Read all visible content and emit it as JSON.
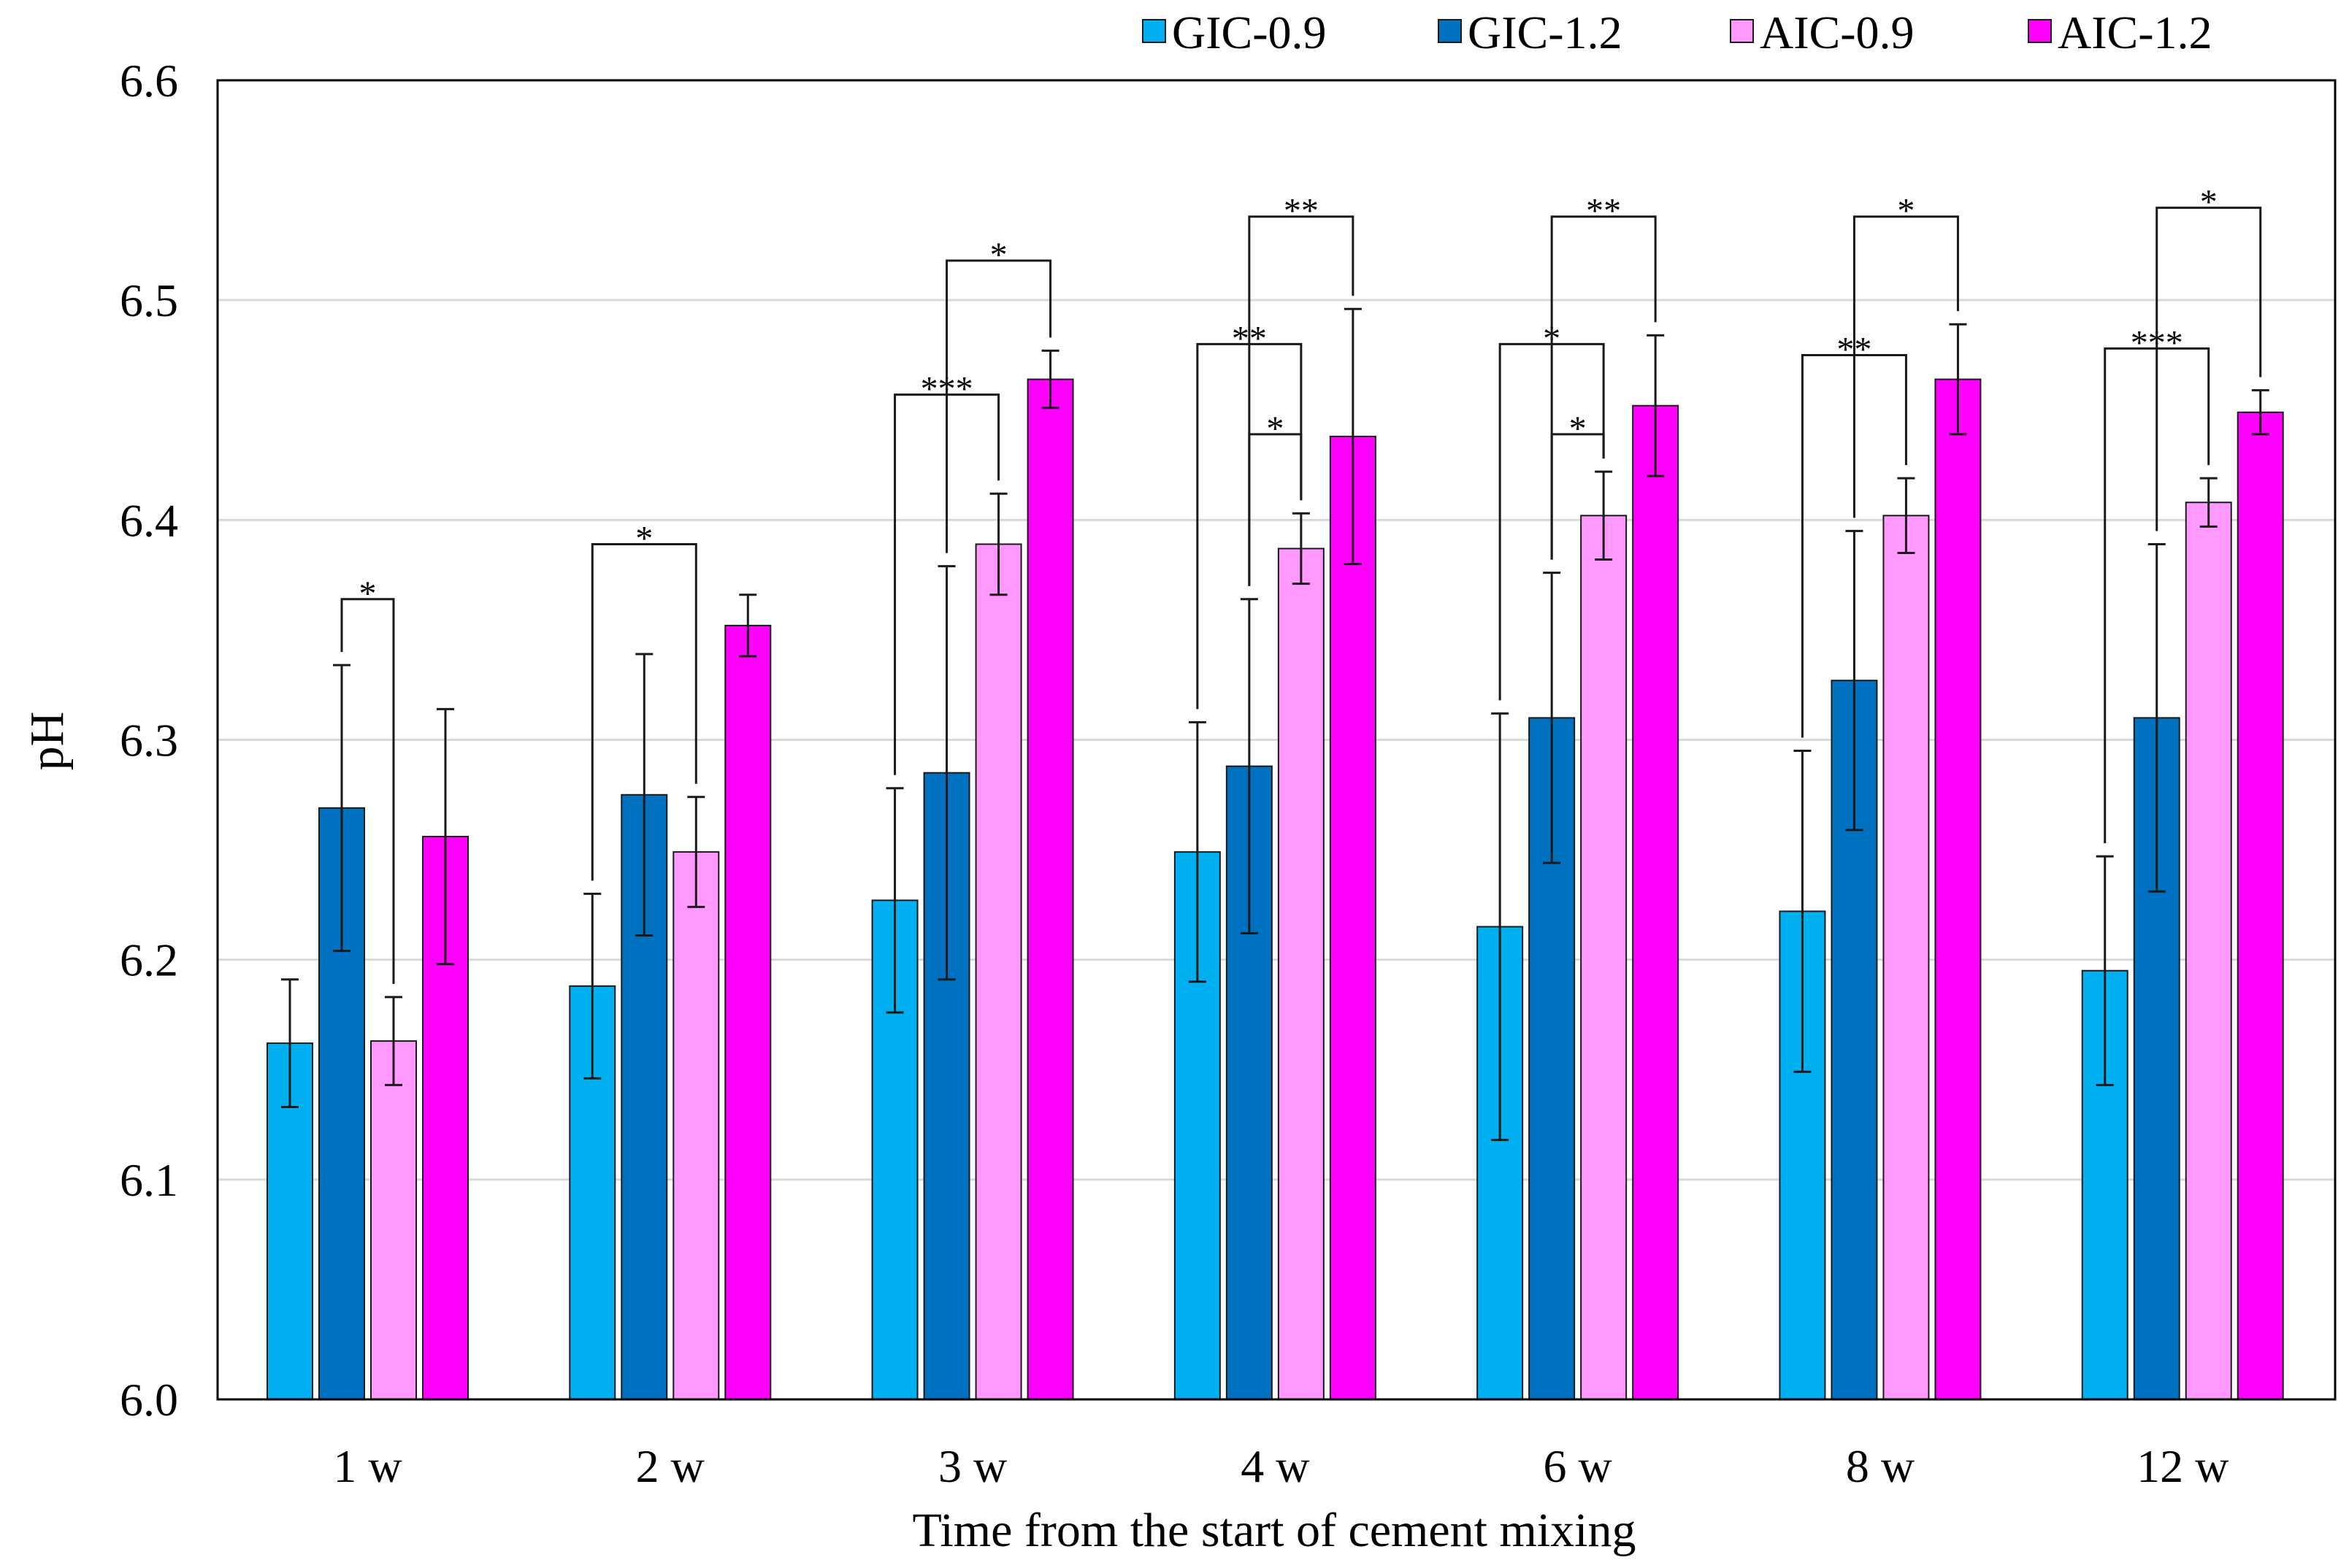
{
  "chart_data": {
    "type": "bar",
    "title": "",
    "xlabel": "Time from the start of cement mixing",
    "ylabel": "pH",
    "ylim": [
      6.0,
      6.6
    ],
    "yticks": [
      "6.0",
      "6.1",
      "6.2",
      "6.3",
      "6.4",
      "6.5",
      "6.6"
    ],
    "grid": true,
    "legend_position": "top-right",
    "categories": [
      "1 w",
      "2 w",
      "3 w",
      "4 w",
      "6 w",
      "8 w",
      "12 w"
    ],
    "series": [
      {
        "name": "GIC-0.9",
        "color": "#00b0f0",
        "values": [
          6.162,
          6.188,
          6.227,
          6.249,
          6.215,
          6.222,
          6.195
        ],
        "errors": [
          0.029,
          0.042,
          0.051,
          0.059,
          0.097,
          0.073,
          0.052
        ]
      },
      {
        "name": "GIC-1.2",
        "color": "#0070c0",
        "values": [
          6.269,
          6.275,
          6.285,
          6.288,
          6.31,
          6.327,
          6.31
        ],
        "errors": [
          0.065,
          0.064,
          0.094,
          0.076,
          0.066,
          0.068,
          0.079
        ]
      },
      {
        "name": "AIC-0.9",
        "color": "#ff99ff",
        "values": [
          6.163,
          6.249,
          6.389,
          6.387,
          6.402,
          6.402,
          6.408
        ],
        "errors": [
          0.02,
          0.025,
          0.023,
          0.016,
          0.02,
          0.017,
          0.011
        ]
      },
      {
        "name": "AIC-1.2",
        "color": "#ff00ff",
        "values": [
          6.256,
          6.352,
          6.464,
          6.438,
          6.452,
          6.464,
          6.449
        ],
        "errors": [
          0.058,
          0.014,
          0.013,
          0.058,
          0.032,
          0.025,
          0.01
        ]
      }
    ],
    "significance": [
      {
        "category": "1 w",
        "from": 1,
        "to": 2,
        "label": "*",
        "level": 6.364
      },
      {
        "category": "2 w",
        "from": 0,
        "to": 2,
        "label": "*",
        "level": 6.389
      },
      {
        "category": "3 w",
        "from": 0,
        "to": 2,
        "label": "***",
        "level": 6.457
      },
      {
        "category": "3 w",
        "from": 1,
        "to": 3,
        "label": "*",
        "level": 6.518
      },
      {
        "category": "4 w",
        "from": 0,
        "to": 2,
        "label": "**",
        "level": 6.48
      },
      {
        "category": "4 w",
        "from": 1,
        "to": 2,
        "label": "*",
        "level": 6.439
      },
      {
        "category": "4 w",
        "from": 1,
        "to": 3,
        "label": "**",
        "level": 6.538
      },
      {
        "category": "6 w",
        "from": 0,
        "to": 2,
        "label": "*",
        "level": 6.48
      },
      {
        "category": "6 w",
        "from": 1,
        "to": 2,
        "label": "*",
        "level": 6.439
      },
      {
        "category": "6 w",
        "from": 1,
        "to": 3,
        "label": "**",
        "level": 6.538
      },
      {
        "category": "8 w",
        "from": 0,
        "to": 2,
        "label": "**",
        "level": 6.475
      },
      {
        "category": "8 w",
        "from": 1,
        "to": 3,
        "label": "*",
        "level": 6.538
      },
      {
        "category": "12 w",
        "from": 0,
        "to": 2,
        "label": "***",
        "level": 6.478
      },
      {
        "category": "12 w",
        "from": 1,
        "to": 3,
        "label": "*",
        "level": 6.542
      }
    ]
  }
}
